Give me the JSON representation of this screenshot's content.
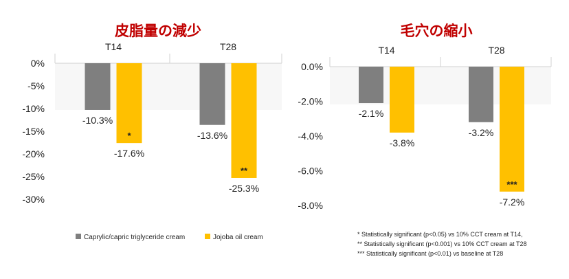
{
  "colors": {
    "title": "#c00000",
    "series1": "#7f7f7f",
    "series2": "#ffc000"
  },
  "legend": [
    {
      "name": "Caprylic/capric triglyceride cream",
      "color": "#7f7f7f"
    },
    {
      "name": "Jojoba oil cream",
      "color": "#ffc000"
    }
  ],
  "footnotes": [
    "* Statistically significant (p<0.05) vs 10% CCT cream at T14,",
    "** Statistically significant (p<0.001) vs 10% CCT cream at T28",
    "*** Statistically significant (p<0.01) vs baseline at T28"
  ],
  "chart_data": [
    {
      "type": "bar",
      "title": "皮脂量の減少",
      "categories": [
        "T14",
        "T28"
      ],
      "ylim": [
        -30,
        0
      ],
      "yticks": [
        "0%",
        "-5%",
        "-10%",
        "-15%",
        "-20%",
        "-25%",
        "-30%"
      ],
      "ytick_values": [
        0,
        -5,
        -10,
        -15,
        -20,
        -25,
        -30
      ],
      "grid": false,
      "legend_position": "bottom",
      "series": [
        {
          "name": "Caprylic/capric triglyceride cream",
          "values": [
            -10.3,
            -13.6
          ],
          "labels": [
            "-10.3%",
            "-13.6%"
          ],
          "markers": [
            "",
            ""
          ]
        },
        {
          "name": "Jojoba oil cream",
          "values": [
            -17.6,
            -25.3
          ],
          "labels": [
            "-17.6%",
            "-25.3%"
          ],
          "markers": [
            "*",
            "**"
          ]
        }
      ]
    },
    {
      "type": "bar",
      "title": "毛穴の縮小",
      "categories": [
        "T14",
        "T28"
      ],
      "ylim": [
        -8,
        0
      ],
      "yticks": [
        "0.0%",
        "-2.0%",
        "-4.0%",
        "-6.0%",
        "-8.0%"
      ],
      "ytick_values": [
        0,
        -2,
        -4,
        -6,
        -8
      ],
      "grid": false,
      "series": [
        {
          "name": "Caprylic/capric triglyceride cream",
          "values": [
            -2.1,
            -3.2
          ],
          "labels": [
            "-2.1%",
            "-3.2%"
          ],
          "markers": [
            "",
            ""
          ]
        },
        {
          "name": "Jojoba oil cream",
          "values": [
            -3.8,
            -7.2
          ],
          "labels": [
            "-3.8%",
            "-7.2%"
          ],
          "markers": [
            "",
            "***"
          ]
        }
      ]
    }
  ]
}
